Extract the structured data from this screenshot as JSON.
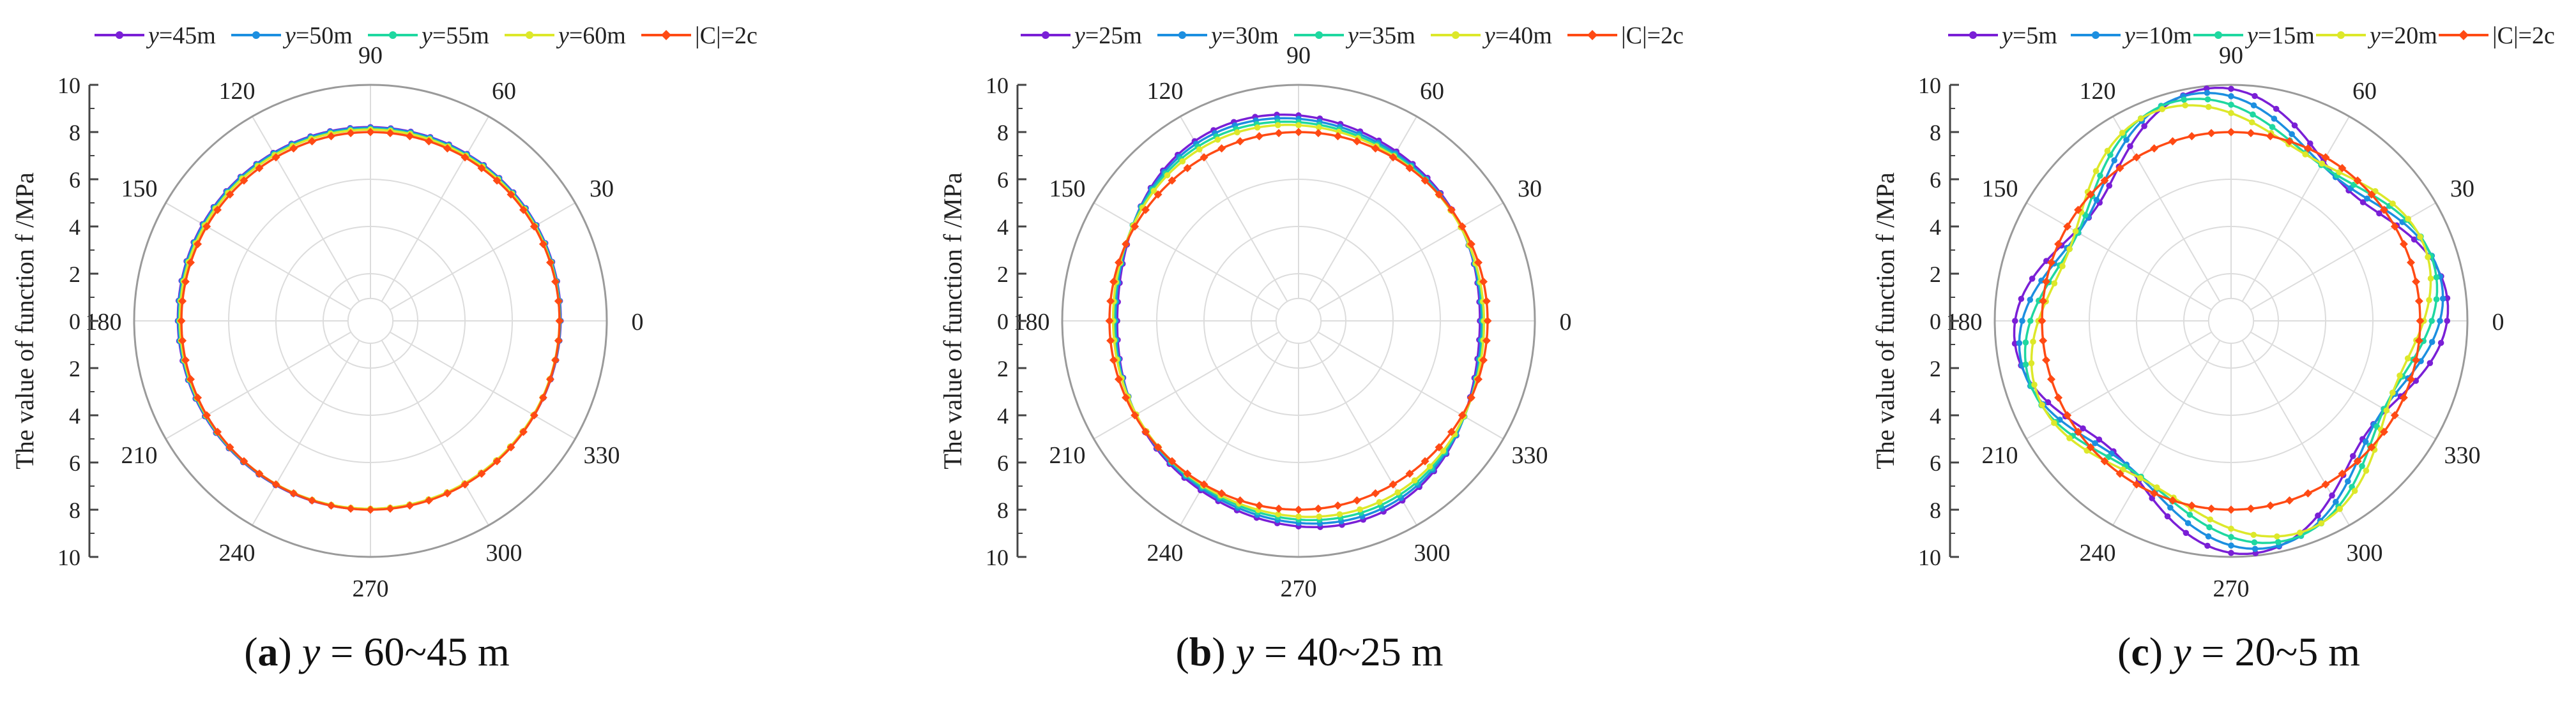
{
  "figure": {
    "captions": [
      {
        "letter": "a",
        "open": "(",
        "close": ")",
        "var": "y",
        "text": " = 60~45 m"
      },
      {
        "letter": "b",
        "open": "(",
        "close": ")",
        "var": "y",
        "text": " = 40~25 m"
      },
      {
        "letter": "c",
        "open": "(",
        "close": ")",
        "var": "y",
        "text": " = 20~5 m"
      }
    ]
  },
  "chart_data": [
    {
      "type": "polar-line",
      "title": "(a) y = 60~45 m",
      "ylabel": "The value of function f /MPa",
      "radial_ticks": [
        "0",
        "2",
        "4",
        "6",
        "8",
        "10"
      ],
      "angle_ticks": [
        "0",
        "30",
        "60",
        "90",
        "120",
        "150",
        "180",
        "210",
        "240",
        "270",
        "300",
        "330"
      ],
      "rlim": [
        0,
        10
      ],
      "legend": [
        {
          "var": "y",
          "text": "=45m",
          "color": "#7a1fd6"
        },
        {
          "var": "y",
          "text": "=50m",
          "color": "#1c8fe0"
        },
        {
          "var": "y",
          "text": "=55m",
          "color": "#1fd8a0"
        },
        {
          "var": "y",
          "text": "=60m",
          "color": "#dde82a"
        },
        {
          "var": "",
          "text": "|C|=2c",
          "color": "#ff4a14"
        }
      ],
      "series": [
        {
          "name": "y=45m",
          "color": "#7a1fd6",
          "model": {
            "base": 8.1,
            "a2": 0.0,
            "p2": 0,
            "a4": 0.0,
            "p4": 0,
            "shift": 0.12,
            "sdir": 115
          }
        },
        {
          "name": "y=50m",
          "color": "#1c8fe0",
          "model": {
            "base": 8.08,
            "a2": 0.0,
            "p2": 0,
            "a4": 0.0,
            "p4": 0,
            "shift": 0.11,
            "sdir": 115
          }
        },
        {
          "name": "y=55m",
          "color": "#1fd8a0",
          "model": {
            "base": 8.05,
            "a2": 0.0,
            "p2": 0,
            "a4": 0.0,
            "p4": 0,
            "shift": 0.09,
            "sdir": 115
          }
        },
        {
          "name": "y=60m",
          "color": "#dde82a",
          "model": {
            "base": 8.03,
            "a2": 0.0,
            "p2": 0,
            "a4": 0.0,
            "p4": 0,
            "shift": 0.08,
            "sdir": 115
          }
        },
        {
          "name": "|C|=2c",
          "color": "#ff4a14",
          "model": {
            "base": 8.0,
            "a2": 0.0,
            "p2": 0,
            "a4": 0.0,
            "p4": 0,
            "shift": 0.0,
            "sdir": 0
          }
        }
      ]
    },
    {
      "type": "polar-line",
      "title": "(b) y = 40~25 m",
      "ylabel": "The value of function f /MPa",
      "radial_ticks": [
        "0",
        "2",
        "4",
        "6",
        "8",
        "10"
      ],
      "angle_ticks": [
        "0",
        "30",
        "60",
        "90",
        "120",
        "150",
        "180",
        "210",
        "240",
        "270",
        "300",
        "330"
      ],
      "rlim": [
        0,
        10
      ],
      "legend": [
        {
          "var": "y",
          "text": "=25m",
          "color": "#7a1fd6"
        },
        {
          "var": "y",
          "text": "=30m",
          "color": "#1c8fe0"
        },
        {
          "var": "y",
          "text": "=35m",
          "color": "#1fd8a0"
        },
        {
          "var": "y",
          "text": "=40m",
          "color": "#dde82a"
        },
        {
          "var": "",
          "text": "|C|=2c",
          "color": "#ff4a14"
        }
      ],
      "series": [
        {
          "name": "y=25m",
          "color": "#7a1fd6",
          "model": {
            "base": 8.25,
            "a2": 0.55,
            "p2": 100,
            "a4": 0.12,
            "p4": 30,
            "shift": 0.0,
            "sdir": 0
          }
        },
        {
          "name": "y=30m",
          "color": "#1c8fe0",
          "model": {
            "base": 8.2,
            "a2": 0.45,
            "p2": 102,
            "a4": 0.1,
            "p4": 30,
            "shift": 0.0,
            "sdir": 0
          }
        },
        {
          "name": "y=35m",
          "color": "#1fd8a0",
          "model": {
            "base": 8.15,
            "a2": 0.35,
            "p2": 104,
            "a4": 0.08,
            "p4": 30,
            "shift": 0.0,
            "sdir": 0
          }
        },
        {
          "name": "y=40m",
          "color": "#dde82a",
          "model": {
            "base": 8.1,
            "a2": 0.26,
            "p2": 106,
            "a4": 0.06,
            "p4": 30,
            "shift": 0.0,
            "sdir": 0
          }
        },
        {
          "name": "|C|=2c",
          "color": "#ff4a14",
          "model": {
            "base": 8.0,
            "a2": 0.0,
            "p2": 0,
            "a4": 0.0,
            "p4": 0,
            "shift": 0.0,
            "sdir": 0
          }
        }
      ]
    },
    {
      "type": "polar-line",
      "title": "(c) y = 20~5 m",
      "ylabel": "The value of function f /MPa",
      "radial_ticks": [
        "0",
        "2",
        "4",
        "6",
        "8",
        "10"
      ],
      "angle_ticks": [
        "0",
        "30",
        "60",
        "90",
        "120",
        "150",
        "180",
        "210",
        "240",
        "270",
        "300",
        "330"
      ],
      "rlim": [
        0,
        10
      ],
      "legend": [
        {
          "var": "y",
          "text": "=5m",
          "color": "#7a1fd6"
        },
        {
          "var": "y",
          "text": "=10m",
          "color": "#1c8fe0"
        },
        {
          "var": "y",
          "text": "=15m",
          "color": "#1fd8a0"
        },
        {
          "var": "y",
          "text": "=20m",
          "color": "#dde82a"
        },
        {
          "var": "",
          "text": "|C|=2c",
          "color": "#ff4a14"
        }
      ],
      "series": [
        {
          "name": "y=5m",
          "color": "#7a1fd6",
          "model": {
            "base": 8.5,
            "a2": 0.35,
            "p2": 95,
            "a4": 1.05,
            "p4": 5,
            "shift": 0.0,
            "sdir": 0
          }
        },
        {
          "name": "y=10m",
          "color": "#1c8fe0",
          "model": {
            "base": 8.45,
            "a2": 0.35,
            "p2": 97,
            "a4": 0.95,
            "p4": 10,
            "shift": 0.0,
            "sdir": 0
          }
        },
        {
          "name": "y=15m",
          "color": "#1fd8a0",
          "model": {
            "base": 8.4,
            "a2": 0.35,
            "p2": 99,
            "a4": 0.85,
            "p4": 15,
            "shift": 0.0,
            "sdir": 0
          }
        },
        {
          "name": "y=20m",
          "color": "#dde82a",
          "model": {
            "base": 8.35,
            "a2": 0.35,
            "p2": 101,
            "a4": 0.75,
            "p4": 20,
            "shift": 0.0,
            "sdir": 0
          }
        },
        {
          "name": "|C|=2c",
          "color": "#ff4a14",
          "model": {
            "base": 8.0,
            "a2": 0.0,
            "p2": 0,
            "a4": 0.0,
            "p4": 0,
            "shift": 0.0,
            "sdir": 0
          }
        }
      ]
    }
  ]
}
